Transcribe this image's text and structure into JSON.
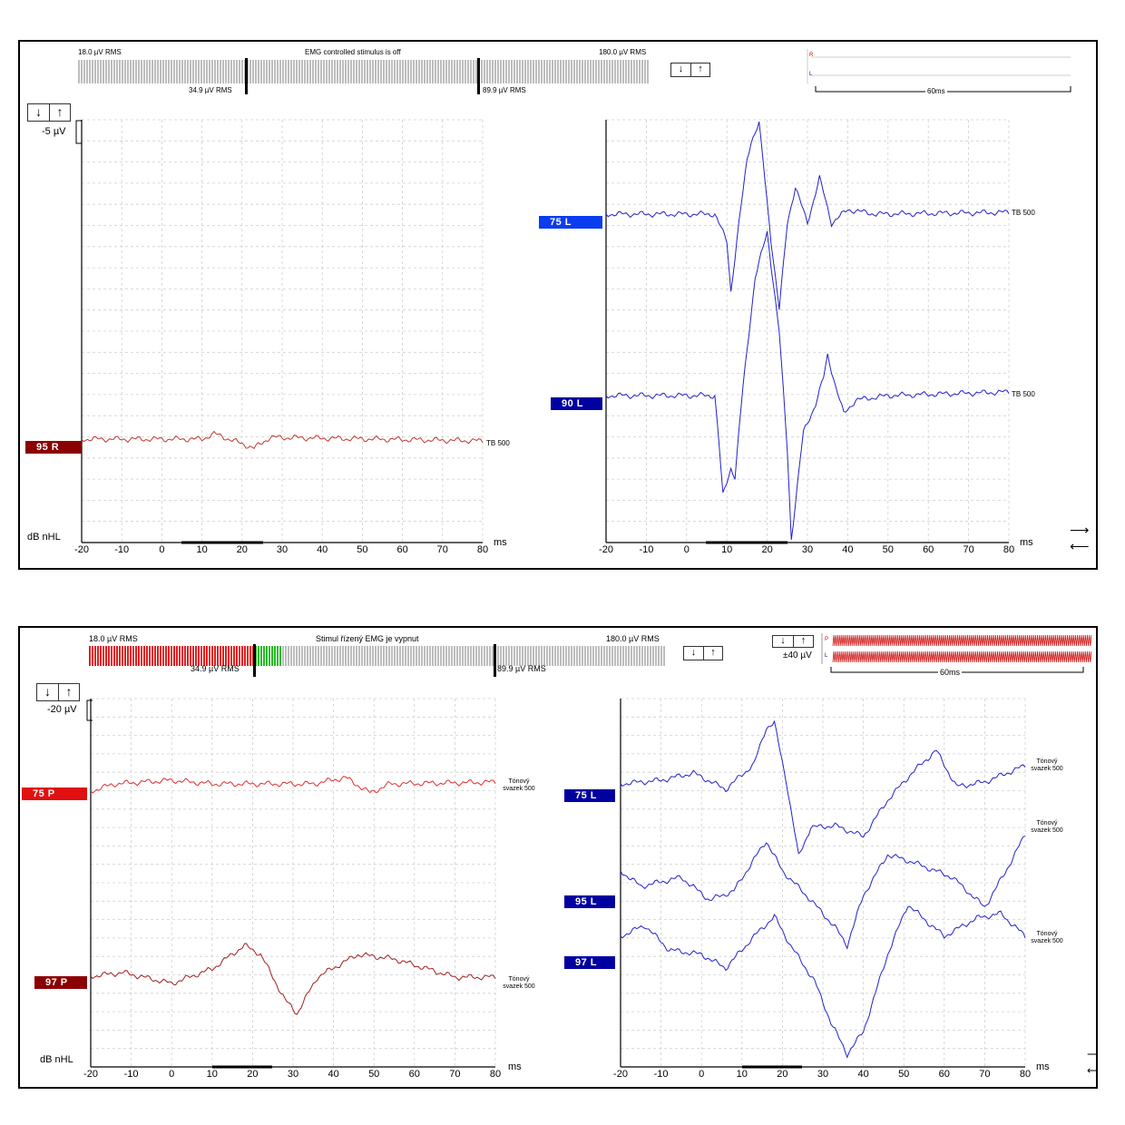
{
  "top_panel": {
    "rms_min": "18.0 µV RMS",
    "rms_max": "180.0 µV RMS",
    "emg_status": "EMG controlled stimulus is off",
    "rms_low": "34.9 µV RMS",
    "rms_high": "89.9 µV RMS",
    "scale": "-5 µV",
    "unit_y": "dB nHL",
    "unit_x": "ms",
    "ear_r": "R",
    "ear_l": "L",
    "window": "60ms",
    "left_plot": {
      "x_ticks": [
        "-20",
        "-10",
        "0",
        "10",
        "20",
        "30",
        "40",
        "50",
        "60",
        "70",
        "80"
      ],
      "traces": [
        {
          "level": "95 R",
          "label": "TB 500"
        }
      ]
    },
    "right_plot": {
      "x_ticks": [
        "-20",
        "-10",
        "0",
        "10",
        "20",
        "30",
        "40",
        "50",
        "60",
        "70",
        "80"
      ],
      "traces": [
        {
          "level": "75 L",
          "label": "TB 500"
        },
        {
          "level": "90 L",
          "label": "TB 500"
        }
      ]
    }
  },
  "bottom_panel": {
    "rms_min": "18.0 µV RMS",
    "rms_max": "180.0 µV RMS",
    "emg_status": "Stimul řízený EMG je vypnut",
    "rms_low": "34.9 µV RMS",
    "rms_high": "89.9 µV RMS",
    "scale": "-20 µV",
    "scale_right": "±40 µV",
    "unit_y": "dB nHL",
    "unit_x": "ms",
    "ear_p": "P",
    "ear_l": "L",
    "window": "60ms",
    "left_plot": {
      "x_ticks": [
        "-20",
        "-10",
        "0",
        "10",
        "20",
        "30",
        "40",
        "50",
        "60",
        "70",
        "80"
      ],
      "traces": [
        {
          "level": "75 P",
          "label_line1": "Tónový",
          "label_line2": "svazek 500"
        },
        {
          "level": "97 P",
          "label_line1": "Tónový",
          "label_line2": "svazek 500"
        }
      ]
    },
    "right_plot": {
      "x_ticks": [
        "-20",
        "-10",
        "0",
        "10",
        "20",
        "30",
        "40",
        "50",
        "60",
        "70",
        "80"
      ],
      "traces": [
        {
          "level": "75 L",
          "label_line1": "Tónový",
          "label_line2": "svazek 500"
        },
        {
          "level": "95 L",
          "label_line1": "Tónový",
          "label_line2": "svazek 500"
        },
        {
          "level": "97 L",
          "label_line1": "Tónový",
          "label_line2": "svazek 500"
        }
      ]
    }
  },
  "buttons": {
    "down": "↓",
    "up": "↑",
    "right_arrow": "⟶",
    "left_arrow": "⟵"
  },
  "colors": {
    "red_trace": "#c0392b",
    "blue_trace": "#2222cc",
    "grid": "#cfcfcf",
    "emg_red": "#e41a1a",
    "emg_green": "#22bb22"
  }
}
